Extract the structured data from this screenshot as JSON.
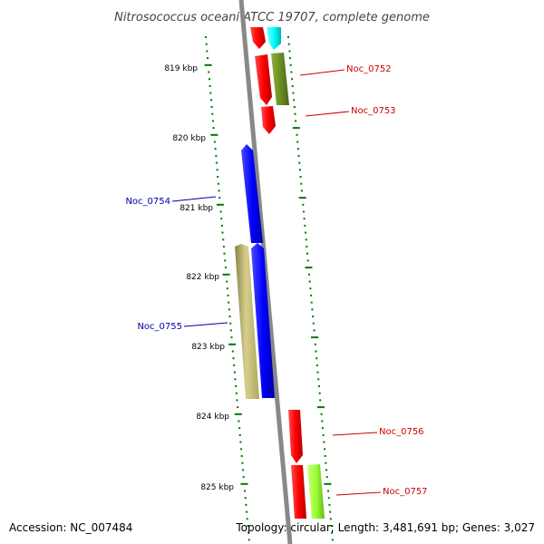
{
  "title": "Nitrosococcus oceani ATCC 19707, complete genome",
  "footer": {
    "accession": "Accession: NC_007484",
    "summary": "Topology: circular; Length: 3,481,691 bp; Genes: 3,027"
  },
  "colors": {
    "backbone": "#808080",
    "ticks": "#007700",
    "red": "#ff0000",
    "cyan": "#00ffff",
    "olive": "#6b8e23",
    "blue": "#0000ff",
    "khaki": "#bdb76b",
    "lime": "#9aff32",
    "label_red": "#cc0000",
    "label_blue": "#0000aa"
  },
  "ruler": [
    {
      "label": "819 kbp"
    },
    {
      "label": "820 kbp"
    },
    {
      "label": "821 kbp"
    },
    {
      "label": "822 kbp"
    },
    {
      "label": "823 kbp"
    },
    {
      "label": "824 kbp"
    },
    {
      "label": "825 kbp"
    }
  ],
  "gene_labels": [
    {
      "name": "Noc_0752",
      "color": "label_red"
    },
    {
      "name": "Noc_0753",
      "color": "label_red"
    },
    {
      "name": "Noc_0754",
      "color": "label_blue"
    },
    {
      "name": "Noc_0755",
      "color": "label_blue"
    },
    {
      "name": "Noc_0756",
      "color": "label_red"
    },
    {
      "name": "Noc_0757",
      "color": "label_red"
    }
  ]
}
